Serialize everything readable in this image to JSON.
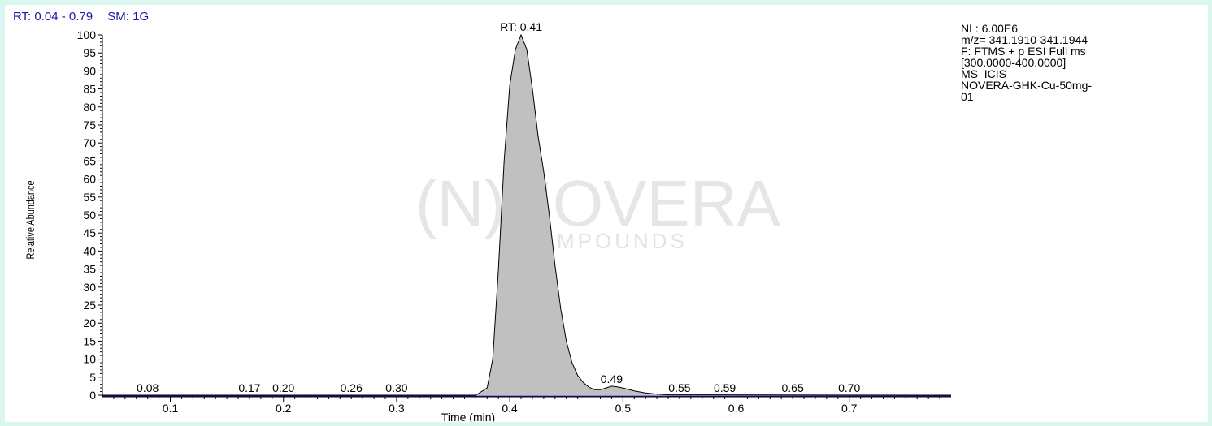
{
  "header": {
    "rt_range": "RT: 0.04 - 0.79",
    "smoothing": "SM: 1G"
  },
  "watermark": {
    "brand": "(N)NOVERA",
    "sub": "COMPOUNDS"
  },
  "info": [
    "NL: 6.00E6",
    "m/z= 341.1910-341.1944",
    "F: FTMS + p ESI Full ms",
    "[300.0000-400.0000]",
    "MS  ICIS",
    "NOVERA-GHK-Cu-50mg-",
    "01"
  ],
  "colors": {
    "peak_fill": "#c0c0c0",
    "baseline": "#1a1aa0",
    "header_text": "#1a1aa0",
    "background": "#d9f7ef"
  },
  "chart_data": {
    "type": "area",
    "xlabel": "Time (min)",
    "ylabel": "Relative Abundance",
    "xlim": [
      0.04,
      0.79
    ],
    "ylim": [
      0,
      100
    ],
    "x_ticks": [
      "0.1",
      "0.2",
      "0.3",
      "0.4",
      "0.5",
      "0.6",
      "0.7"
    ],
    "y_ticks": [
      "0",
      "5",
      "10",
      "15",
      "20",
      "25",
      "30",
      "35",
      "40",
      "45",
      "50",
      "55",
      "60",
      "65",
      "70",
      "75",
      "80",
      "85",
      "90",
      "95",
      "100"
    ],
    "grid": false,
    "series": [
      {
        "x": [
          0.04,
          0.37,
          0.38,
          0.385,
          0.39,
          0.395,
          0.4,
          0.405,
          0.41,
          0.415,
          0.42,
          0.425,
          0.43,
          0.435,
          0.44,
          0.445,
          0.45,
          0.455,
          0.46,
          0.465,
          0.47,
          0.475,
          0.48,
          0.485,
          0.49,
          0.495,
          0.5,
          0.51,
          0.52,
          0.53,
          0.54,
          0.79
        ],
        "y": [
          0,
          0,
          2,
          10,
          35,
          65,
          86,
          96,
          100,
          96,
          85,
          72,
          62,
          50,
          36,
          24,
          15,
          9,
          5.5,
          3.5,
          2.2,
          1.5,
          1.5,
          2,
          2.5,
          2.3,
          2,
          1.2,
          0.6,
          0.3,
          0.1,
          0
        ]
      }
    ],
    "peak_labels": [
      {
        "x": 0.41,
        "y": 100,
        "label": "RT: 0.41"
      },
      {
        "x": 0.08,
        "y": 0,
        "label": "0.08"
      },
      {
        "x": 0.17,
        "y": 0,
        "label": "0.17"
      },
      {
        "x": 0.2,
        "y": 0,
        "label": "0.20"
      },
      {
        "x": 0.26,
        "y": 0,
        "label": "0.26"
      },
      {
        "x": 0.3,
        "y": 0,
        "label": "0.30"
      },
      {
        "x": 0.49,
        "y": 2.5,
        "label": "0.49"
      },
      {
        "x": 0.55,
        "y": 0,
        "label": "0.55"
      },
      {
        "x": 0.59,
        "y": 0,
        "label": "0.59"
      },
      {
        "x": 0.65,
        "y": 0,
        "label": "0.65"
      },
      {
        "x": 0.7,
        "y": 0,
        "label": "0.70"
      }
    ]
  }
}
